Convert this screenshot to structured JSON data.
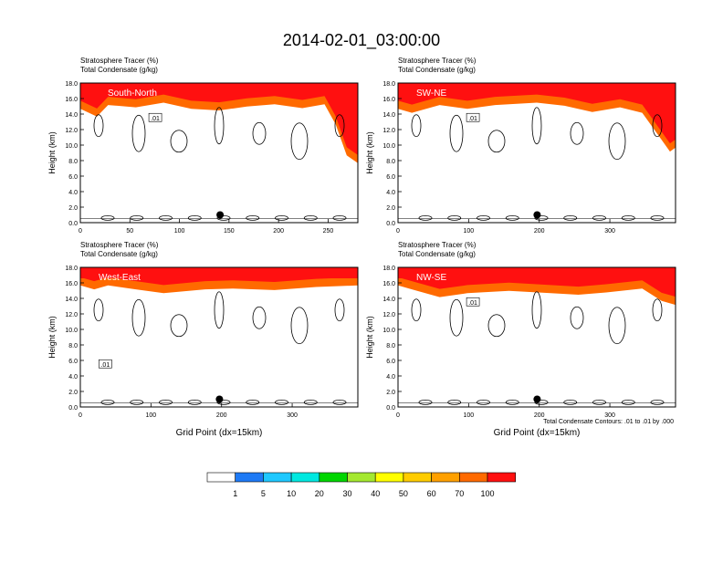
{
  "title": "2014-02-01_03:00:00",
  "colorbar": {
    "labels": [
      "1",
      "5",
      "10",
      "20",
      "30",
      "40",
      "50",
      "60",
      "70",
      "100"
    ],
    "colors": [
      "#ffffff",
      "#1e7af5",
      "#1fc8ff",
      "#00e8e0",
      "#28e04a",
      "#00d600",
      "#a4e830",
      "#ffff00",
      "#ffcc00",
      "#ffa000",
      "#ff6a00",
      "#ff1010"
    ]
  },
  "contour_note": "Total Condensate Contours: .01 to .01 by .000",
  "chart_data": [
    {
      "type": "heatmap",
      "panel": "South-North",
      "label_line1": "Stratosphere Tracer   (%)",
      "label_line2": "Total Condensate   (g/kg)",
      "ylabel": "Height (km)",
      "xlabel": "",
      "ylim": [
        0,
        18
      ],
      "yticks": [
        "0.0",
        "2.0",
        "4.0",
        "6.0",
        "8.0",
        "10.0",
        "12.0",
        "14.0",
        "16.0",
        "18.0"
      ],
      "xlim": [
        0,
        280
      ],
      "xticks": [
        "0",
        "50",
        "100",
        "150",
        "200",
        "250"
      ],
      "xtick_values": [
        0,
        50,
        100,
        150,
        200,
        250
      ],
      "contour_label": ".01",
      "marker_x": 141,
      "marker_y": 1.0
    },
    {
      "type": "heatmap",
      "panel": "SW-NE",
      "label_line1": "Stratosphere Tracer   (%)",
      "label_line2": "Total Condensate   (g/kg)",
      "ylabel": "Height (km)",
      "xlabel": "",
      "ylim": [
        0,
        18
      ],
      "yticks": [
        "0.0",
        "2.0",
        "4.0",
        "6.0",
        "8.0",
        "10.0",
        "12.0",
        "14.0",
        "16.0",
        "18.0"
      ],
      "xlim": [
        0,
        393
      ],
      "xticks": [
        "0",
        "100",
        "200",
        "300"
      ],
      "xtick_values": [
        0,
        100,
        200,
        300
      ],
      "contour_label": ".01",
      "marker_x": 197,
      "marker_y": 1.0
    },
    {
      "type": "heatmap",
      "panel": "West-East",
      "label_line1": "Stratosphere Tracer   (%)",
      "label_line2": "Total Condensate   (g/kg)",
      "ylabel": "Height (km)",
      "xlabel": "Grid Point (dx=15km)",
      "ylim": [
        0,
        18
      ],
      "yticks": [
        "0.0",
        "2.0",
        "4.0",
        "6.0",
        "8.0",
        "10.0",
        "12.0",
        "14.0",
        "16.0",
        "18.0"
      ],
      "xlim": [
        0,
        393
      ],
      "xticks": [
        "0",
        "100",
        "200",
        "300"
      ],
      "xtick_values": [
        0,
        100,
        200,
        300
      ],
      "contour_label": ".01",
      "marker_x": 197,
      "marker_y": 1.0
    },
    {
      "type": "heatmap",
      "panel": "NW-SE",
      "label_line1": "Stratosphere Tracer   (%)",
      "label_line2": "Total Condensate   (g/kg)",
      "ylabel": "Height (km)",
      "xlabel": "Grid Point (dx=15km)",
      "ylim": [
        0,
        18
      ],
      "yticks": [
        "0.0",
        "2.0",
        "4.0",
        "6.0",
        "8.0",
        "10.0",
        "12.0",
        "14.0",
        "16.0",
        "18.0"
      ],
      "xlim": [
        0,
        393
      ],
      "xticks": [
        "0",
        "100",
        "200",
        "300"
      ],
      "xtick_values": [
        0,
        100,
        200,
        300
      ],
      "contour_label": ".01",
      "marker_x": 197,
      "marker_y": 1.0
    }
  ]
}
